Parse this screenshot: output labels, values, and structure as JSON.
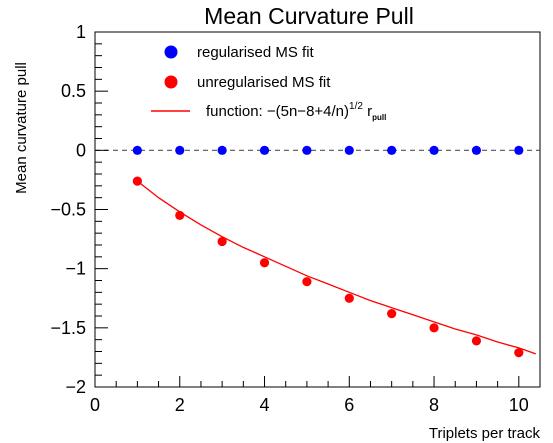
{
  "chart_data": {
    "type": "scatter",
    "title": "Mean Curvature Pull",
    "xlabel": "Triplets per track",
    "ylabel": "Mean curvature pull",
    "xlim": [
      0,
      10.5
    ],
    "ylim": [
      -2,
      1
    ],
    "x_ticks": [
      0,
      2,
      4,
      6,
      8,
      10
    ],
    "x_tick_labels": [
      "0",
      "2",
      "4",
      "6",
      "8",
      "10"
    ],
    "y_ticks": [
      1,
      0.5,
      0,
      -0.5,
      -1,
      -1.5,
      -2
    ],
    "y_tick_labels": [
      "1",
      "0.5",
      "0",
      "−0.5",
      "−1",
      "−1.5",
      "−2"
    ],
    "reference_line": {
      "y": 0,
      "style": "dashed",
      "color": "#555555"
    },
    "legend": {
      "position": "top-right",
      "entries": [
        {
          "label": "regularised MS fit",
          "marker": "dot",
          "color": "#0000ff"
        },
        {
          "label": "unregularised MS fit",
          "marker": "dot",
          "color": "#ff0000"
        },
        {
          "label_prefix": "function: −(5n−8+4/n)",
          "label_sup": "1/2",
          "label_mid": " r",
          "label_sub": "pull",
          "marker": "line",
          "color": "#ff0000"
        }
      ]
    },
    "series": [
      {
        "name": "regularised MS fit",
        "kind": "points",
        "color": "#0000ff",
        "x": [
          1,
          2,
          3,
          4,
          5,
          6,
          7,
          8,
          9,
          10
        ],
        "y": [
          0,
          0,
          0,
          0,
          0,
          0,
          0,
          0,
          0,
          0
        ]
      },
      {
        "name": "unregularised MS fit",
        "kind": "points",
        "color": "#ff0000",
        "x": [
          1,
          2,
          3,
          4,
          5,
          6,
          7,
          8,
          9,
          10
        ],
        "y": [
          -0.26,
          -0.55,
          -0.77,
          -0.95,
          -1.11,
          -1.25,
          -1.38,
          -1.5,
          -1.61,
          -1.71
        ]
      },
      {
        "name": "function: −(5n−8+4/n)^1/2 r_pull",
        "kind": "line",
        "color": "#ff0000",
        "x": [
          1,
          1.5,
          2,
          2.5,
          3,
          3.5,
          4,
          4.5,
          5,
          5.5,
          6,
          6.5,
          7,
          7.5,
          8,
          8.5,
          9,
          9.5,
          10,
          10.4
        ],
        "y": [
          -0.26,
          -0.4,
          -0.52,
          -0.63,
          -0.73,
          -0.82,
          -0.9,
          -0.98,
          -1.06,
          -1.13,
          -1.2,
          -1.27,
          -1.33,
          -1.39,
          -1.45,
          -1.51,
          -1.56,
          -1.62,
          -1.67,
          -1.72
        ]
      }
    ]
  }
}
